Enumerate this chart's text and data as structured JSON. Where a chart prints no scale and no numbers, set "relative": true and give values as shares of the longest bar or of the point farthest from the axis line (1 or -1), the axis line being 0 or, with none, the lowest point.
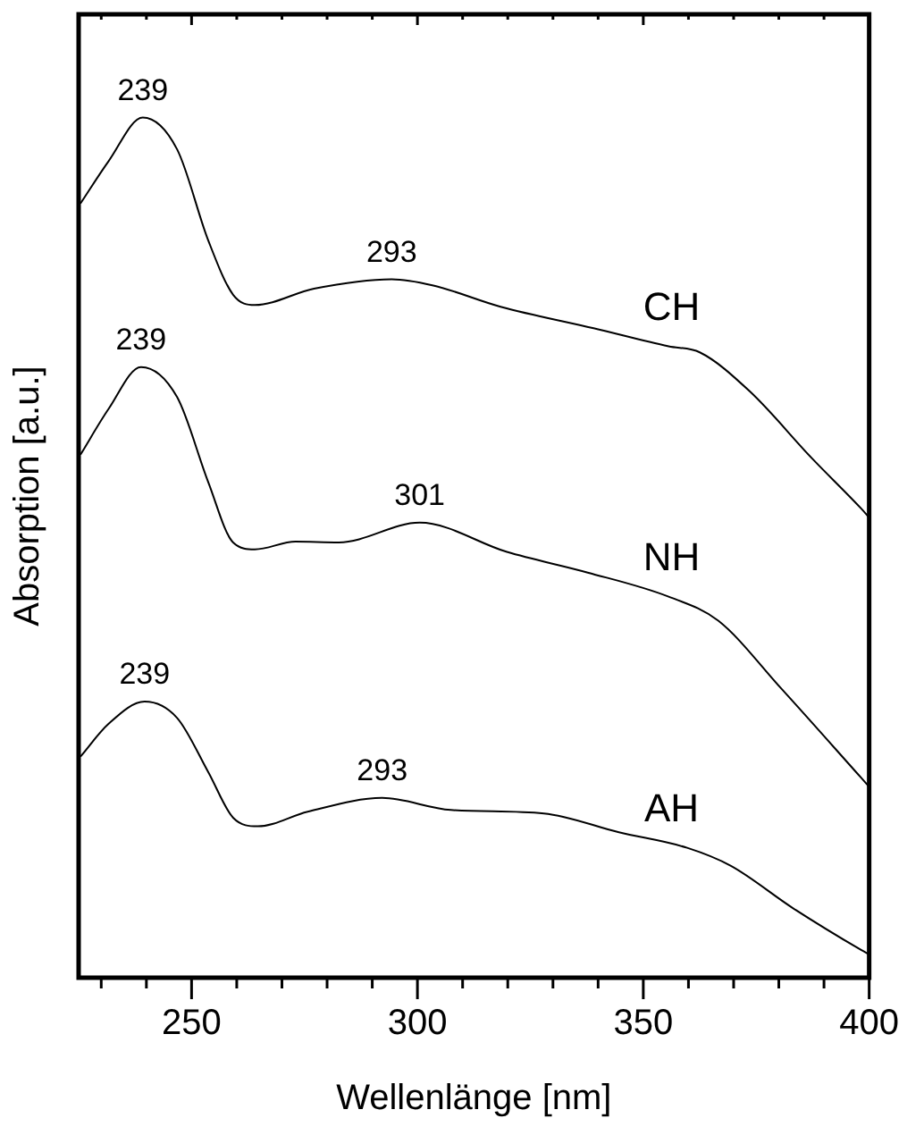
{
  "chart_data": {
    "type": "line",
    "relative": true,
    "xlabel": "Wellenlänge [nm]",
    "ylabel": "Absorption [a.u.]",
    "xlim": [
      225,
      400
    ],
    "xticks": [
      {
        "value": 230,
        "label": null
      },
      {
        "value": 240,
        "label": null
      },
      250,
      {
        "value": 260,
        "label": null
      },
      {
        "value": 270,
        "label": null
      },
      {
        "value": 280,
        "label": null
      },
      {
        "value": 290,
        "label": null
      },
      300,
      {
        "value": 310,
        "label": null
      },
      {
        "value": 320,
        "label": null
      },
      {
        "value": 330,
        "label": null
      },
      {
        "value": 340,
        "label": null
      },
      350,
      {
        "value": 360,
        "label": null
      },
      {
        "value": 370,
        "label": null
      },
      {
        "value": 380,
        "label": null
      },
      {
        "value": 390,
        "label": null
      },
      400
    ],
    "grid": false,
    "legend": false,
    "marker": "none",
    "line_style": "solid",
    "series": [
      {
        "name": "CH",
        "color": "#000000",
        "x": [
          225.4,
          231.6,
          239.2,
          246.8,
          253.7,
          259.2,
          264,
          277.1,
          294.3,
          303.3,
          318.4,
          339,
          355.6,
          362.5,
          373.5,
          387.3,
          398.3,
          400
        ],
        "values": [
          0.9,
          0.949,
          1.0,
          0.963,
          0.857,
          0.794,
          0.782,
          0.801,
          0.812,
          0.805,
          0.78,
          0.755,
          0.734,
          0.727,
          0.682,
          0.604,
          0.545,
          0.535
        ]
      },
      {
        "name": "NH",
        "color": "#000000",
        "x": [
          225.4,
          231.6,
          238.8,
          246.8,
          253.7,
          259.2,
          264,
          273,
          282.6,
          300.5,
          319.8,
          337.7,
          355.6,
          366.6,
          380.4,
          398.3,
          400
        ],
        "values": [
          0.608,
          0.661,
          0.71,
          0.675,
          0.576,
          0.506,
          0.498,
          0.507,
          0.506,
          0.529,
          0.495,
          0.471,
          0.443,
          0.415,
          0.337,
          0.232,
          0.222
        ]
      },
      {
        "name": "AH",
        "color": "#000000",
        "x": [
          225.4,
          231.6,
          239.6,
          246.8,
          253.7,
          259.2,
          264.7,
          275.7,
          292.2,
          307.4,
          328,
          344.6,
          359.7,
          369.4,
          383.1,
          398.3,
          400
        ],
        "values": [
          0.257,
          0.295,
          0.321,
          0.302,
          0.239,
          0.186,
          0.176,
          0.193,
          0.209,
          0.195,
          0.191,
          0.169,
          0.151,
          0.13,
          0.081,
          0.032,
          0.027
        ]
      }
    ],
    "annotations": [
      {
        "text": "239",
        "x": 239.2,
        "y": 1.0
      },
      {
        "text": "293",
        "x": 294.3,
        "y": 0.812
      },
      {
        "text": "239",
        "x": 238.8,
        "y": 0.71
      },
      {
        "text": "301",
        "x": 300.5,
        "y": 0.529
      },
      {
        "text": "239",
        "x": 239.6,
        "y": 0.321
      },
      {
        "text": "293",
        "x": 292.2,
        "y": 0.209
      }
    ]
  }
}
